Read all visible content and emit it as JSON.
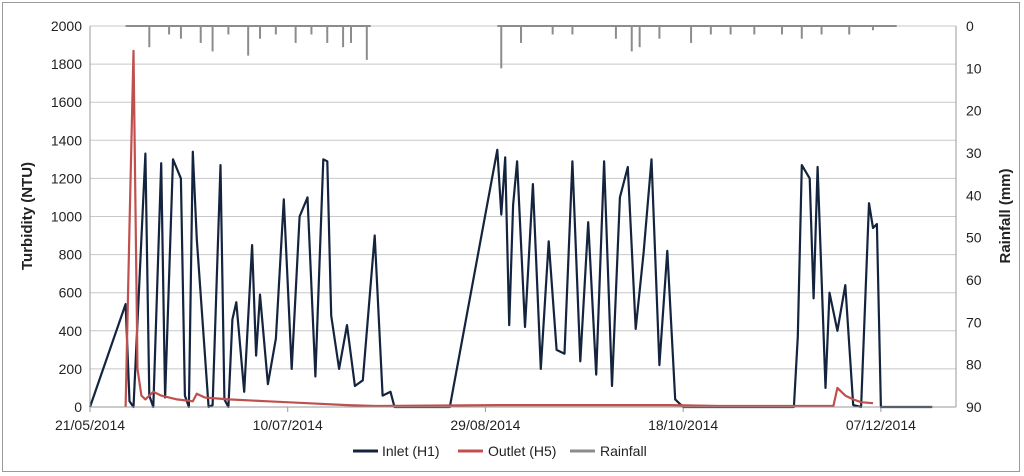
{
  "chart_data": {
    "type": "line",
    "ylabel": "Turbidity (NTU)",
    "y2label": "Rainfall (mm)",
    "x_ticks": [
      "21/05/2014",
      "10/07/2014",
      "29/08/2014",
      "18/10/2014",
      "07/12/2014"
    ],
    "xlim": [
      "21/05/2014",
      "26/12/2014"
    ],
    "ylim": [
      0,
      2000
    ],
    "y_ticks": [
      0,
      200,
      400,
      600,
      800,
      1000,
      1200,
      1400,
      1600,
      1800,
      2000
    ],
    "y2lim": [
      90,
      0
    ],
    "y2_ticks": [
      0,
      10,
      20,
      30,
      40,
      50,
      60,
      70,
      80,
      90
    ],
    "grid": true,
    "legend_position": "bottom",
    "colors": {
      "inlet": "#14243f",
      "outlet": "#c0504d",
      "rainfall": "#8c8c8c",
      "grid": "#c8c8c8"
    },
    "series": [
      {
        "name": "Inlet (H1)",
        "axis": "left",
        "x": [
          "2014-05-21",
          "2014-05-30",
          "2014-05-31",
          "2014-06-01",
          "2014-06-04",
          "2014-06-05",
          "2014-06-06",
          "2014-06-08",
          "2014-06-09",
          "2014-06-11",
          "2014-06-13",
          "2014-06-14",
          "2014-06-15",
          "2014-06-16",
          "2014-06-17",
          "2014-06-20",
          "2014-06-21",
          "2014-06-23",
          "2014-06-24",
          "2014-06-25",
          "2014-06-26",
          "2014-06-27",
          "2014-06-29",
          "2014-07-01",
          "2014-07-02",
          "2014-07-03",
          "2014-07-05",
          "2014-07-07",
          "2014-07-09",
          "2014-07-11",
          "2014-07-13",
          "2014-07-15",
          "2014-07-17",
          "2014-07-19",
          "2014-07-20",
          "2014-07-21",
          "2014-07-23",
          "2014-07-25",
          "2014-07-27",
          "2014-07-29",
          "2014-08-01",
          "2014-08-03",
          "2014-08-05",
          "2014-08-06",
          "2014-08-10",
          "2014-08-20",
          "2014-09-01",
          "2014-09-02",
          "2014-09-03",
          "2014-09-04",
          "2014-09-05",
          "2014-09-06",
          "2014-09-08",
          "2014-09-10",
          "2014-09-12",
          "2014-09-14",
          "2014-09-16",
          "2014-09-18",
          "2014-09-20",
          "2014-09-22",
          "2014-09-24",
          "2014-09-26",
          "2014-09-28",
          "2014-09-30",
          "2014-10-02",
          "2014-10-04",
          "2014-10-06",
          "2014-10-08",
          "2014-10-10",
          "2014-10-12",
          "2014-10-14",
          "2014-10-16",
          "2014-10-18",
          "2014-10-20",
          "2014-10-22",
          "2014-10-24",
          "2014-10-26",
          "2014-10-27",
          "2014-11-01",
          "2014-11-15",
          "2014-11-16",
          "2014-11-17",
          "2014-11-19",
          "2014-11-20",
          "2014-11-21",
          "2014-11-23",
          "2014-11-24",
          "2014-11-26",
          "2014-11-28",
          "2014-11-30",
          "2014-12-02",
          "2014-12-04",
          "2014-12-05",
          "2014-12-06",
          "2014-12-07",
          "2014-12-08",
          "2014-12-10",
          "2014-12-20"
        ],
        "values": [
          0,
          540,
          30,
          0,
          1330,
          60,
          0,
          1280,
          50,
          1300,
          1200,
          60,
          0,
          1340,
          880,
          0,
          10,
          1270,
          40,
          0,
          460,
          550,
          80,
          850,
          270,
          590,
          120,
          360,
          1090,
          200,
          1000,
          1100,
          160,
          1300,
          1290,
          480,
          200,
          430,
          110,
          140,
          900,
          60,
          80,
          0,
          0,
          0,
          1350,
          1010,
          1310,
          430,
          1060,
          1290,
          420,
          1170,
          200,
          870,
          300,
          280,
          1290,
          240,
          970,
          170,
          1290,
          110,
          1100,
          1260,
          410,
          810,
          1300,
          220,
          820,
          40,
          0,
          0,
          0,
          0,
          0,
          0,
          0,
          0,
          370,
          1270,
          1200,
          570,
          1260,
          100,
          600,
          400,
          640,
          10,
          0,
          1070,
          940,
          960,
          0,
          0,
          0,
          0
        ],
        "note_values_sampled": true
      },
      {
        "name": "Outlet (H5)",
        "axis": "left",
        "x": [
          "2014-05-30",
          "2014-05-31",
          "2014-06-01",
          "2014-06-02",
          "2014-06-03",
          "2014-06-04",
          "2014-06-06",
          "2014-06-08",
          "2014-06-12",
          "2014-06-16",
          "2014-06-17",
          "2014-06-19",
          "2014-06-25",
          "2014-07-05",
          "2014-07-15",
          "2014-07-25",
          "2014-08-01",
          "2014-09-01",
          "2014-10-15",
          "2014-10-27",
          "2014-11-15",
          "2014-11-25",
          "2014-11-26",
          "2014-11-28",
          "2014-11-30",
          "2014-12-02",
          "2014-12-05"
        ],
        "values": [
          0,
          950,
          1870,
          200,
          60,
          40,
          80,
          60,
          40,
          30,
          70,
          50,
          40,
          30,
          20,
          10,
          5,
          10,
          10,
          5,
          5,
          5,
          100,
          60,
          40,
          25,
          20
        ]
      },
      {
        "name": "Rainfall",
        "axis": "right",
        "x": [
          "2014-06-05",
          "2014-06-10",
          "2014-06-13",
          "2014-06-18",
          "2014-06-21",
          "2014-06-25",
          "2014-06-30",
          "2014-07-03",
          "2014-07-07",
          "2014-07-12",
          "2014-07-16",
          "2014-07-20",
          "2014-07-24",
          "2014-07-26",
          "2014-07-30",
          "2014-09-02",
          "2014-09-07",
          "2014-09-15",
          "2014-09-20",
          "2014-10-01",
          "2014-10-05",
          "2014-10-07",
          "2014-10-12",
          "2014-10-20",
          "2014-10-25",
          "2014-10-30",
          "2014-11-05",
          "2014-11-12",
          "2014-11-17",
          "2014-11-22",
          "2014-11-29",
          "2014-12-05"
        ],
        "values": [
          5,
          2,
          3,
          4,
          6,
          2,
          7,
          3,
          2,
          4,
          2,
          4,
          5,
          4,
          8,
          10,
          4,
          2,
          2,
          3,
          6,
          5,
          3,
          4,
          2,
          2,
          2,
          2,
          3,
          2,
          2,
          1
        ]
      }
    ]
  },
  "legend": [
    {
      "label": "Inlet (H1)",
      "color": "#14243f"
    },
    {
      "label": "Outlet (H5)",
      "color": "#c0504d"
    },
    {
      "label": "Rainfall",
      "color": "#8c8c8c"
    }
  ]
}
